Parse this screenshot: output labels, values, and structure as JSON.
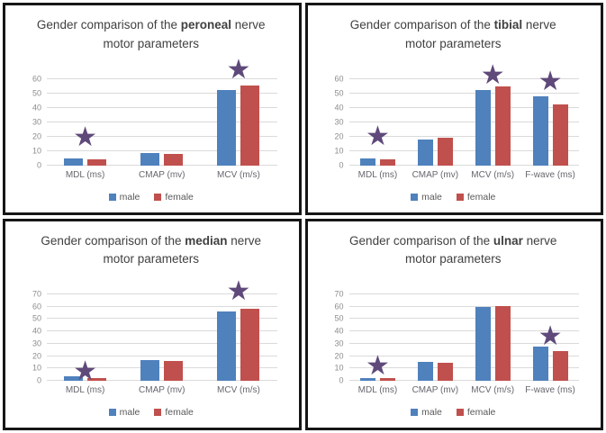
{
  "colors": {
    "male": "#4F81BD",
    "female": "#C0504D",
    "star": "#5F497A",
    "grid": "#DADADA",
    "title_text": "#404040",
    "tick_text": "#8C8C8C",
    "category_text": "#66666E",
    "legend_text": "#595959",
    "border": "#161616"
  },
  "legend": {
    "items": [
      {
        "label": "male",
        "color_key": "male"
      },
      {
        "label": "female",
        "color_key": "female"
      }
    ]
  },
  "chart_data": [
    {
      "type": "bar",
      "nerve": "peroneal",
      "title_parts": [
        {
          "text": "Gender comparison of the ",
          "bold": false
        },
        {
          "text": "peroneal",
          "bold": true
        },
        {
          "text": " nerve motor parameters",
          "bold": false
        }
      ],
      "categories": [
        "MDL (ms)",
        "CMAP (mv)",
        "MCV (m/s)"
      ],
      "series": [
        {
          "name": "male",
          "values": [
            4.5,
            8.5,
            52
          ]
        },
        {
          "name": "female",
          "values": [
            4,
            8,
            55.5
          ]
        }
      ],
      "ylim": [
        0,
        60
      ],
      "yticks": [
        0,
        10,
        20,
        30,
        40,
        50,
        60
      ],
      "grid": true,
      "legend_position": "bottom",
      "significance_stars": [
        {
          "category_index": 0,
          "y": 19
        },
        {
          "category_index": 2,
          "y": 66
        }
      ]
    },
    {
      "type": "bar",
      "nerve": "tibial",
      "title_parts": [
        {
          "text": "Gender comparison of the ",
          "bold": false
        },
        {
          "text": "tibial",
          "bold": true
        },
        {
          "text": " nerve motor parameters",
          "bold": false
        }
      ],
      "categories": [
        "MDL (ms)",
        "CMAP (mv)",
        "MCV (m/s)",
        "F-wave (ms)"
      ],
      "series": [
        {
          "name": "male",
          "values": [
            4.5,
            18,
            52,
            48
          ]
        },
        {
          "name": "female",
          "values": [
            3.8,
            19,
            54.5,
            42.5
          ]
        }
      ],
      "ylim": [
        0,
        60
      ],
      "yticks": [
        0,
        10,
        20,
        30,
        40,
        50,
        60
      ],
      "grid": true,
      "legend_position": "bottom",
      "significance_stars": [
        {
          "category_index": 0,
          "y": 20
        },
        {
          "category_index": 2,
          "y": 62
        },
        {
          "category_index": 3,
          "y": 58
        }
      ]
    },
    {
      "type": "bar",
      "nerve": "median",
      "title_parts": [
        {
          "text": "Gender comparison of the ",
          "bold": false
        },
        {
          "text": "median",
          "bold": true
        },
        {
          "text": " nerve motor parameters",
          "bold": false
        }
      ],
      "categories": [
        "MDL (ms)",
        "CMAP (mv)",
        "MCV (m/s)"
      ],
      "series": [
        {
          "name": "male",
          "values": [
            3.5,
            17,
            56.5
          ]
        },
        {
          "name": "female",
          "values": [
            2.5,
            16,
            58
          ]
        }
      ],
      "ylim": [
        0,
        70
      ],
      "yticks": [
        0,
        10,
        20,
        30,
        40,
        50,
        60,
        70
      ],
      "grid": true,
      "legend_position": "bottom",
      "significance_stars": [
        {
          "category_index": 0,
          "y": 7
        },
        {
          "category_index": 2,
          "y": 72
        }
      ]
    },
    {
      "type": "bar",
      "nerve": "ulnar",
      "title_parts": [
        {
          "text": "Gender comparison of the ",
          "bold": false
        },
        {
          "text": "ulnar",
          "bold": true
        },
        {
          "text": " nerve motor parameters",
          "bold": false
        }
      ],
      "categories": [
        "MDL (ms)",
        "CMAP (mv)",
        "MCV (m/s)",
        "F-wave (ms)"
      ],
      "series": [
        {
          "name": "male",
          "values": [
            2.5,
            15,
            60,
            27.5
          ]
        },
        {
          "name": "female",
          "values": [
            2.2,
            14.5,
            60.5,
            24
          ]
        }
      ],
      "ylim": [
        0,
        70
      ],
      "yticks": [
        0,
        10,
        20,
        30,
        40,
        50,
        60,
        70
      ],
      "grid": true,
      "legend_position": "bottom",
      "significance_stars": [
        {
          "category_index": 0,
          "y": 12
        },
        {
          "category_index": 3,
          "y": 36
        }
      ]
    }
  ]
}
